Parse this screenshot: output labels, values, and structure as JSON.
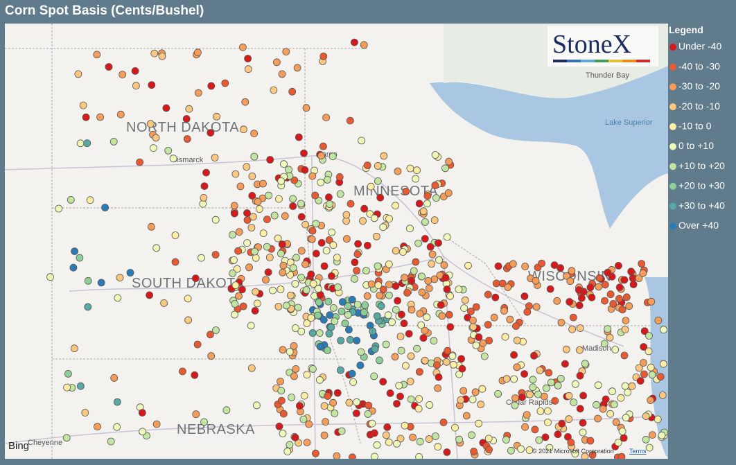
{
  "header": {
    "title": "Corn Spot Basis (Cents/Bushel)"
  },
  "map": {
    "logo": "StoneX",
    "provider": "Bing",
    "attribution": "© 2021 Microsoft Corporation",
    "terms": "Terms",
    "labels": [
      "NORTH DAKOTA",
      "MINNESOTA",
      "SOUTH DAKOTA",
      "WISCONSIN",
      "NEBRASKA",
      "Bismarck",
      "Fargo",
      "Thunder Bay",
      "Lake Superior",
      "Madison",
      "Cedar Rapids",
      "Cheyenne"
    ]
  },
  "legend": {
    "title": "Legend",
    "items": [
      {
        "label": "Under -40",
        "color": "#d7191c"
      },
      {
        "label": "-40 to -30",
        "color": "#ea5a32"
      },
      {
        "label": "-30 to -20",
        "color": "#f79d5a"
      },
      {
        "label": "-20 to -10",
        "color": "#fcc880"
      },
      {
        "label": "-10 to 0",
        "color": "#fdeea6"
      },
      {
        "label": "0 to +10",
        "color": "#eef8b8"
      },
      {
        "label": "+10 to +20",
        "color": "#c2e6a2"
      },
      {
        "label": "+20 to +30",
        "color": "#8ecf98"
      },
      {
        "label": "+30 to +40",
        "color": "#58a9a3"
      },
      {
        "label": "Over +40",
        "color": "#2b7bb6"
      }
    ]
  }
}
